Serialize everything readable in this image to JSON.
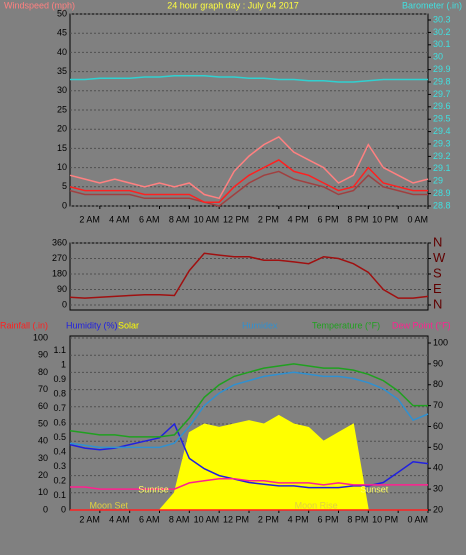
{
  "chart_data": [
    {
      "type": "line",
      "title": "24 hour graph day : July 04 2017",
      "y_label": "Windspeed (mph)",
      "y_label_color": "#ff8080",
      "y2_label": "Barometer (.in)",
      "y2_label_color": "#40e0e0",
      "x": [
        0,
        1,
        2,
        3,
        4,
        5,
        6,
        7,
        8,
        9,
        10,
        11,
        12,
        13,
        14,
        15,
        16,
        17,
        18,
        19,
        20,
        21,
        22,
        23,
        24
      ],
      "xlim": [
        0,
        24
      ],
      "xticks": [
        {
          "value": 2,
          "label": "2 AM"
        },
        {
          "value": 4,
          "label": "4 AM"
        },
        {
          "value": 6,
          "label": "6 AM"
        },
        {
          "value": 8,
          "label": "8 AM"
        },
        {
          "value": 10,
          "label": "10 AM"
        },
        {
          "value": 12,
          "label": "12 PM"
        },
        {
          "value": 14,
          "label": "2 PM"
        },
        {
          "value": 16,
          "label": "4 PM"
        },
        {
          "value": 18,
          "label": "6 PM"
        },
        {
          "value": 20,
          "label": "8 PM"
        },
        {
          "value": 22,
          "label": "10 PM"
        },
        {
          "value": 24,
          "label": "0 AM"
        }
      ],
      "ylim": [
        0,
        50
      ],
      "yticks": [
        0,
        5,
        10,
        15,
        20,
        25,
        30,
        35,
        40,
        45,
        50
      ],
      "y2lim": [
        28.8,
        30.3
      ],
      "y2ticks": [
        28.8,
        28.9,
        29,
        29.1,
        29.2,
        29.3,
        29.4,
        29.5,
        29.6,
        29.7,
        29.8,
        29.9,
        30,
        30.1,
        30.2,
        30.3
      ],
      "grid": true,
      "series": [
        {
          "color": "#ff8080",
          "values": [
            8,
            7,
            6,
            7,
            6,
            5,
            6,
            5,
            6,
            3,
            2,
            9,
            13,
            16,
            18,
            14,
            12,
            10,
            6,
            8,
            16,
            10,
            8,
            6,
            7
          ]
        },
        {
          "color": "#a04040",
          "values": [
            4,
            3,
            3,
            3,
            3,
            2,
            2,
            2,
            2,
            1,
            0,
            3,
            6,
            8,
            9,
            7,
            6,
            5,
            3,
            4,
            8,
            5,
            4,
            3,
            3
          ]
        },
        {
          "color": "#ff2020",
          "values": [
            5,
            4,
            4,
            4,
            4,
            3,
            3,
            3,
            3,
            1,
            1,
            5,
            8,
            10,
            12,
            9,
            8,
            6,
            4,
            5,
            10,
            6,
            5,
            4,
            4
          ]
        },
        {
          "color": "#30d0d0",
          "axis": "y2",
          "values": [
            29.82,
            29.82,
            29.83,
            29.83,
            29.83,
            29.84,
            29.84,
            29.85,
            29.85,
            29.85,
            29.84,
            29.84,
            29.83,
            29.83,
            29.82,
            29.82,
            29.81,
            29.81,
            29.8,
            29.8,
            29.81,
            29.82,
            29.82,
            29.82,
            29.82
          ]
        }
      ]
    },
    {
      "type": "line",
      "x": [
        0,
        1,
        2,
        3,
        4,
        5,
        6,
        7,
        8,
        9,
        10,
        11,
        12,
        13,
        14,
        15,
        16,
        17,
        18,
        19,
        20,
        21,
        22,
        23,
        24
      ],
      "xlim": [
        0,
        24
      ],
      "ylim": [
        0,
        360
      ],
      "yticks": [
        0,
        90,
        180,
        270,
        360
      ],
      "y2lim": [
        0,
        360
      ],
      "y2ticks": [
        {
          "value": 360,
          "label": "N"
        },
        {
          "value": 270,
          "label": "W"
        },
        {
          "value": 180,
          "label": "S"
        },
        {
          "value": 90,
          "label": "E"
        },
        {
          "value": 0,
          "label": "N"
        }
      ],
      "grid": true,
      "series": [
        {
          "color": "#a01010",
          "values": [
            45,
            40,
            45,
            50,
            55,
            60,
            60,
            55,
            200,
            300,
            290,
            280,
            280,
            260,
            260,
            250,
            240,
            280,
            270,
            240,
            190,
            90,
            40,
            40,
            50
          ]
        }
      ]
    },
    {
      "type": "line",
      "x": [
        0,
        1,
        2,
        3,
        4,
        5,
        6,
        7,
        8,
        9,
        10,
        11,
        12,
        13,
        14,
        15,
        16,
        17,
        18,
        19,
        20,
        21,
        22,
        23,
        24
      ],
      "xlim": [
        0,
        24
      ],
      "xticks": [
        {
          "value": 2,
          "label": "2 AM"
        },
        {
          "value": 4,
          "label": "4 AM"
        },
        {
          "value": 6,
          "label": "6 AM"
        },
        {
          "value": 8,
          "label": "8 AM"
        },
        {
          "value": 10,
          "label": "10 AM"
        },
        {
          "value": 12,
          "label": "12 PM"
        },
        {
          "value": 14,
          "label": "2 PM"
        },
        {
          "value": 16,
          "label": "4 PM"
        },
        {
          "value": 18,
          "label": "6 PM"
        },
        {
          "value": 20,
          "label": "8 PM"
        },
        {
          "value": 22,
          "label": "10 PM"
        },
        {
          "value": 24,
          "label": "0 AM"
        }
      ],
      "ylim": [
        0,
        100
      ],
      "yticks": [
        0,
        10,
        20,
        30,
        40,
        50,
        60,
        70,
        80,
        90,
        100
      ],
      "y3lim": [
        0,
        1.2
      ],
      "y3ticks": [
        0,
        0.1,
        0.2,
        0.3,
        0.4,
        0.5,
        0.6,
        0.7,
        0.8,
        0.9,
        1,
        1.1
      ],
      "y2lim": [
        20,
        100
      ],
      "y2ticks": [
        20,
        30,
        40,
        50,
        60,
        70,
        80,
        90,
        100
      ],
      "grid": true,
      "annotations": [
        {
          "text": "Sunrise",
          "x": 5.6,
          "color": "#ffff60"
        },
        {
          "text": "Sunset",
          "x": 20.4,
          "color": "#ffff60"
        },
        {
          "text": "Moon Set",
          "x": 2.6,
          "color": "#e0d040",
          "low": true
        },
        {
          "text": "Moon Rise",
          "x": 16.5,
          "color": "#e0d040",
          "low": true
        }
      ],
      "series": [
        {
          "name": "Solar",
          "color": "#ffff00",
          "area": true,
          "values": [
            0,
            0,
            0,
            0,
            0,
            0,
            0,
            10,
            45,
            50,
            48,
            50,
            52,
            50,
            55,
            50,
            48,
            40,
            45,
            50,
            0,
            0,
            0,
            0,
            0
          ]
        },
        {
          "name": "Rainfall (.in)",
          "color": "#ff2020",
          "axis": "y3",
          "values": [
            0,
            0,
            0,
            0,
            0,
            0,
            0,
            0,
            0,
            0,
            0,
            0,
            0,
            0,
            0,
            0,
            0,
            0,
            0,
            0,
            0,
            0,
            0,
            0,
            0
          ]
        },
        {
          "name": "Humidity (%)",
          "color": "#2020e0",
          "values": [
            38,
            36,
            35,
            36,
            38,
            40,
            42,
            50,
            30,
            24,
            20,
            18,
            16,
            15,
            14,
            14,
            13,
            13,
            13,
            14,
            14,
            16,
            22,
            28,
            27
          ]
        },
        {
          "name": "Humidex",
          "color": "#3090d0",
          "axis": "y2",
          "values": [
            52,
            51,
            50,
            50,
            50,
            50,
            50,
            52,
            60,
            70,
            76,
            80,
            82,
            84,
            85,
            86,
            85,
            84,
            84,
            83,
            81,
            78,
            73,
            63,
            66
          ]
        },
        {
          "name": "Temperature (°F)",
          "color": "#20a020",
          "axis": "y2",
          "values": [
            58,
            57,
            56,
            56,
            55,
            55,
            55,
            56,
            64,
            74,
            80,
            84,
            86,
            88,
            89,
            90,
            89,
            88,
            88,
            87,
            85,
            82,
            77,
            70,
            70
          ]
        },
        {
          "name": "Dew Point (°F)",
          "color": "#ff2090",
          "axis": "y2",
          "values": [
            31,
            31,
            30,
            30,
            30,
            30,
            30,
            30,
            33,
            34,
            35,
            35,
            34,
            34,
            33,
            33,
            33,
            32,
            33,
            32,
            32,
            32,
            32,
            32,
            32
          ]
        }
      ]
    }
  ]
}
